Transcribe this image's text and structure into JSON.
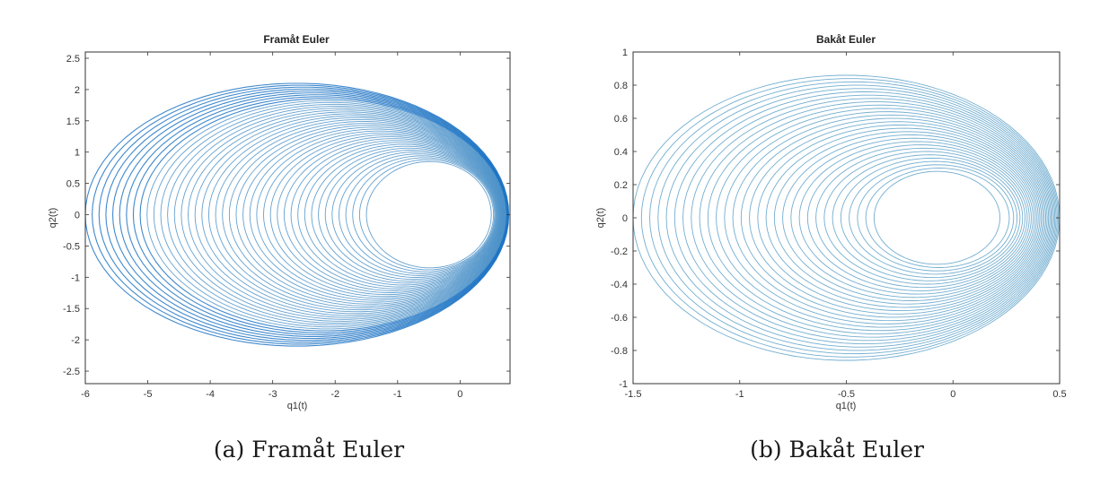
{
  "captions": {
    "a": "(a) Framåt Euler",
    "b": "(b) Bakåt Euler"
  },
  "chart_data": [
    {
      "type": "line",
      "title": "Framåt Euler",
      "xlabel": "q1(t)",
      "ylabel": "q2(t)",
      "xlim": [
        -6,
        0.8
      ],
      "ylim": [
        -2.7,
        2.6
      ],
      "xticks": [
        -6,
        -5,
        -4,
        -3,
        -2,
        -1,
        0
      ],
      "yticks": [
        -2.5,
        -2,
        -1.5,
        -1,
        -0.5,
        0,
        0.5,
        1,
        1.5,
        2,
        2.5
      ],
      "xticklabels": [
        "-6",
        "-5",
        "-4",
        "-3",
        "-2",
        "-1",
        "0"
      ],
      "yticklabels": [
        "-2.5",
        "-2",
        "-1.5",
        "-1",
        "-0.5",
        "0",
        "0.5",
        "1",
        "1.5",
        "2",
        "2.5"
      ],
      "grid": false,
      "color": "#4a90c8",
      "dense_color": "#1f74c4",
      "series": [
        {
          "description_values": true,
          "inner_orbit": {
            "left": -1.5,
            "right": 0.5,
            "y_extent": 0.85,
            "center_x": -0.55
          },
          "outer_orbit": {
            "left": -6.0,
            "right": 0.78,
            "y_extent": 2.1,
            "center_x": -2.6
          },
          "loops": 42
        }
      ]
    },
    {
      "type": "line",
      "title": "Bakåt Euler",
      "xlabel": "q1(t)",
      "ylabel": "q2(t)",
      "xlim": [
        -1.5,
        0.5
      ],
      "ylim": [
        -1,
        1
      ],
      "xticks": [
        -1.5,
        -1,
        -0.5,
        0,
        0.5
      ],
      "yticks": [
        -1,
        -0.8,
        -0.6,
        -0.4,
        -0.2,
        0,
        0.2,
        0.4,
        0.6,
        0.8,
        1
      ],
      "xticklabels": [
        "-1.5",
        "-1",
        "-0.5",
        "0",
        "0.5"
      ],
      "yticklabels": [
        "-1",
        "-0.8",
        "-0.6",
        "-0.4",
        "-0.2",
        "0",
        "0.2",
        "0.4",
        "0.6",
        "0.8",
        "1"
      ],
      "grid": false,
      "color": "#5aa0c8",
      "dense_color": "#5aa0c8",
      "series": [
        {
          "description_values": true,
          "inner_orbit": {
            "left": -0.37,
            "right": 0.22,
            "y_extent": 0.28,
            "center_x": -0.075
          },
          "outer_orbit": {
            "left": -1.5,
            "right": 0.5,
            "y_extent": 0.86,
            "center_x": -0.5
          },
          "loops": 30
        }
      ]
    }
  ]
}
